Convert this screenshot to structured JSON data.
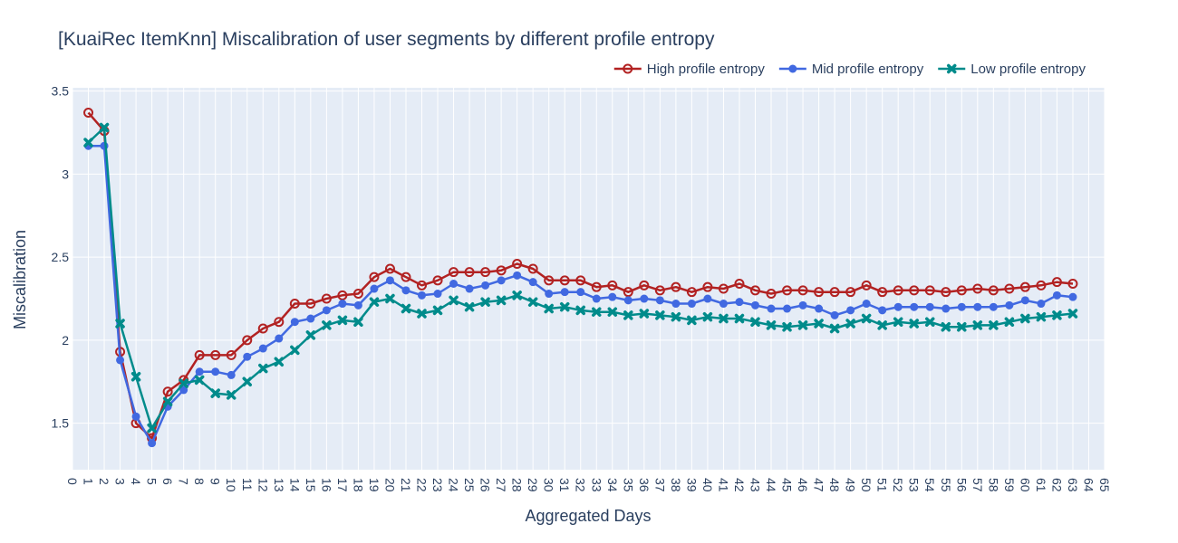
{
  "chart_data": {
    "type": "line",
    "title": "[KuaiRec ItemKnn] Miscalibration of user segments by different profile entropy",
    "xlabel": "Aggregated Days",
    "ylabel": "Miscalibration",
    "xlim": [
      0,
      65
    ],
    "ylim": [
      1.22,
      3.52
    ],
    "x_ticks": [
      0,
      1,
      2,
      3,
      4,
      5,
      6,
      7,
      8,
      9,
      10,
      11,
      12,
      13,
      14,
      15,
      16,
      17,
      18,
      19,
      20,
      21,
      22,
      23,
      24,
      25,
      26,
      27,
      28,
      29,
      30,
      31,
      32,
      33,
      34,
      35,
      36,
      37,
      38,
      39,
      40,
      41,
      42,
      43,
      44,
      45,
      46,
      47,
      48,
      49,
      50,
      51,
      52,
      53,
      54,
      55,
      56,
      57,
      58,
      59,
      60,
      61,
      62,
      63,
      64,
      65
    ],
    "y_ticks": [
      1.5,
      2,
      2.5,
      3,
      3.5
    ],
    "y_tick_labels": [
      "1.5",
      "2",
      "2.5",
      "3",
      "3.5"
    ],
    "grid": true,
    "legend_position": "top-right",
    "plot_background": "#E5ECF6",
    "x": [
      1,
      2,
      3,
      4,
      5,
      6,
      7,
      8,
      9,
      10,
      11,
      12,
      13,
      14,
      15,
      16,
      17,
      18,
      19,
      20,
      21,
      22,
      23,
      24,
      25,
      26,
      27,
      28,
      29,
      30,
      31,
      32,
      33,
      34,
      35,
      36,
      37,
      38,
      39,
      40,
      41,
      42,
      43,
      44,
      45,
      46,
      47,
      48,
      49,
      50,
      51,
      52,
      53,
      54,
      55,
      56,
      57,
      58,
      59,
      60,
      61,
      62,
      63
    ],
    "series": [
      {
        "name": "High profile entropy",
        "color": "#B22222",
        "marker": "circle-open",
        "values": [
          3.37,
          3.26,
          1.93,
          1.5,
          1.41,
          1.69,
          1.76,
          1.91,
          1.91,
          1.91,
          2.0,
          2.07,
          2.11,
          2.22,
          2.22,
          2.25,
          2.27,
          2.28,
          2.38,
          2.43,
          2.38,
          2.33,
          2.36,
          2.41,
          2.41,
          2.41,
          2.42,
          2.46,
          2.43,
          2.36,
          2.36,
          2.36,
          2.32,
          2.33,
          2.29,
          2.33,
          2.3,
          2.32,
          2.29,
          2.32,
          2.31,
          2.34,
          2.3,
          2.28,
          2.3,
          2.3,
          2.29,
          2.29,
          2.29,
          2.33,
          2.29,
          2.3,
          2.3,
          2.3,
          2.29,
          2.3,
          2.31,
          2.3,
          2.31,
          2.32,
          2.33,
          2.35,
          2.34
        ]
      },
      {
        "name": "Mid profile entropy",
        "color": "#4169E1",
        "marker": "circle",
        "values": [
          3.17,
          3.17,
          1.88,
          1.54,
          1.38,
          1.6,
          1.7,
          1.81,
          1.81,
          1.79,
          1.9,
          1.95,
          2.01,
          2.11,
          2.13,
          2.18,
          2.22,
          2.21,
          2.31,
          2.36,
          2.3,
          2.27,
          2.28,
          2.34,
          2.31,
          2.33,
          2.36,
          2.39,
          2.35,
          2.28,
          2.29,
          2.29,
          2.25,
          2.26,
          2.24,
          2.25,
          2.24,
          2.22,
          2.22,
          2.25,
          2.22,
          2.23,
          2.21,
          2.19,
          2.19,
          2.21,
          2.19,
          2.15,
          2.18,
          2.22,
          2.18,
          2.2,
          2.2,
          2.2,
          2.19,
          2.2,
          2.2,
          2.2,
          2.21,
          2.24,
          2.22,
          2.27,
          2.26
        ]
      },
      {
        "name": "Low profile entropy",
        "color": "#008B8B",
        "marker": "x",
        "values": [
          3.19,
          3.28,
          2.1,
          1.78,
          1.47,
          1.63,
          1.74,
          1.76,
          1.68,
          1.67,
          1.75,
          1.83,
          1.87,
          1.94,
          2.03,
          2.09,
          2.12,
          2.11,
          2.23,
          2.25,
          2.19,
          2.16,
          2.18,
          2.24,
          2.2,
          2.23,
          2.24,
          2.27,
          2.23,
          2.19,
          2.2,
          2.18,
          2.17,
          2.17,
          2.15,
          2.16,
          2.15,
          2.14,
          2.12,
          2.14,
          2.13,
          2.13,
          2.11,
          2.09,
          2.08,
          2.09,
          2.1,
          2.07,
          2.1,
          2.13,
          2.09,
          2.11,
          2.1,
          2.11,
          2.08,
          2.08,
          2.09,
          2.09,
          2.11,
          2.13,
          2.14,
          2.15,
          2.16
        ]
      }
    ]
  }
}
